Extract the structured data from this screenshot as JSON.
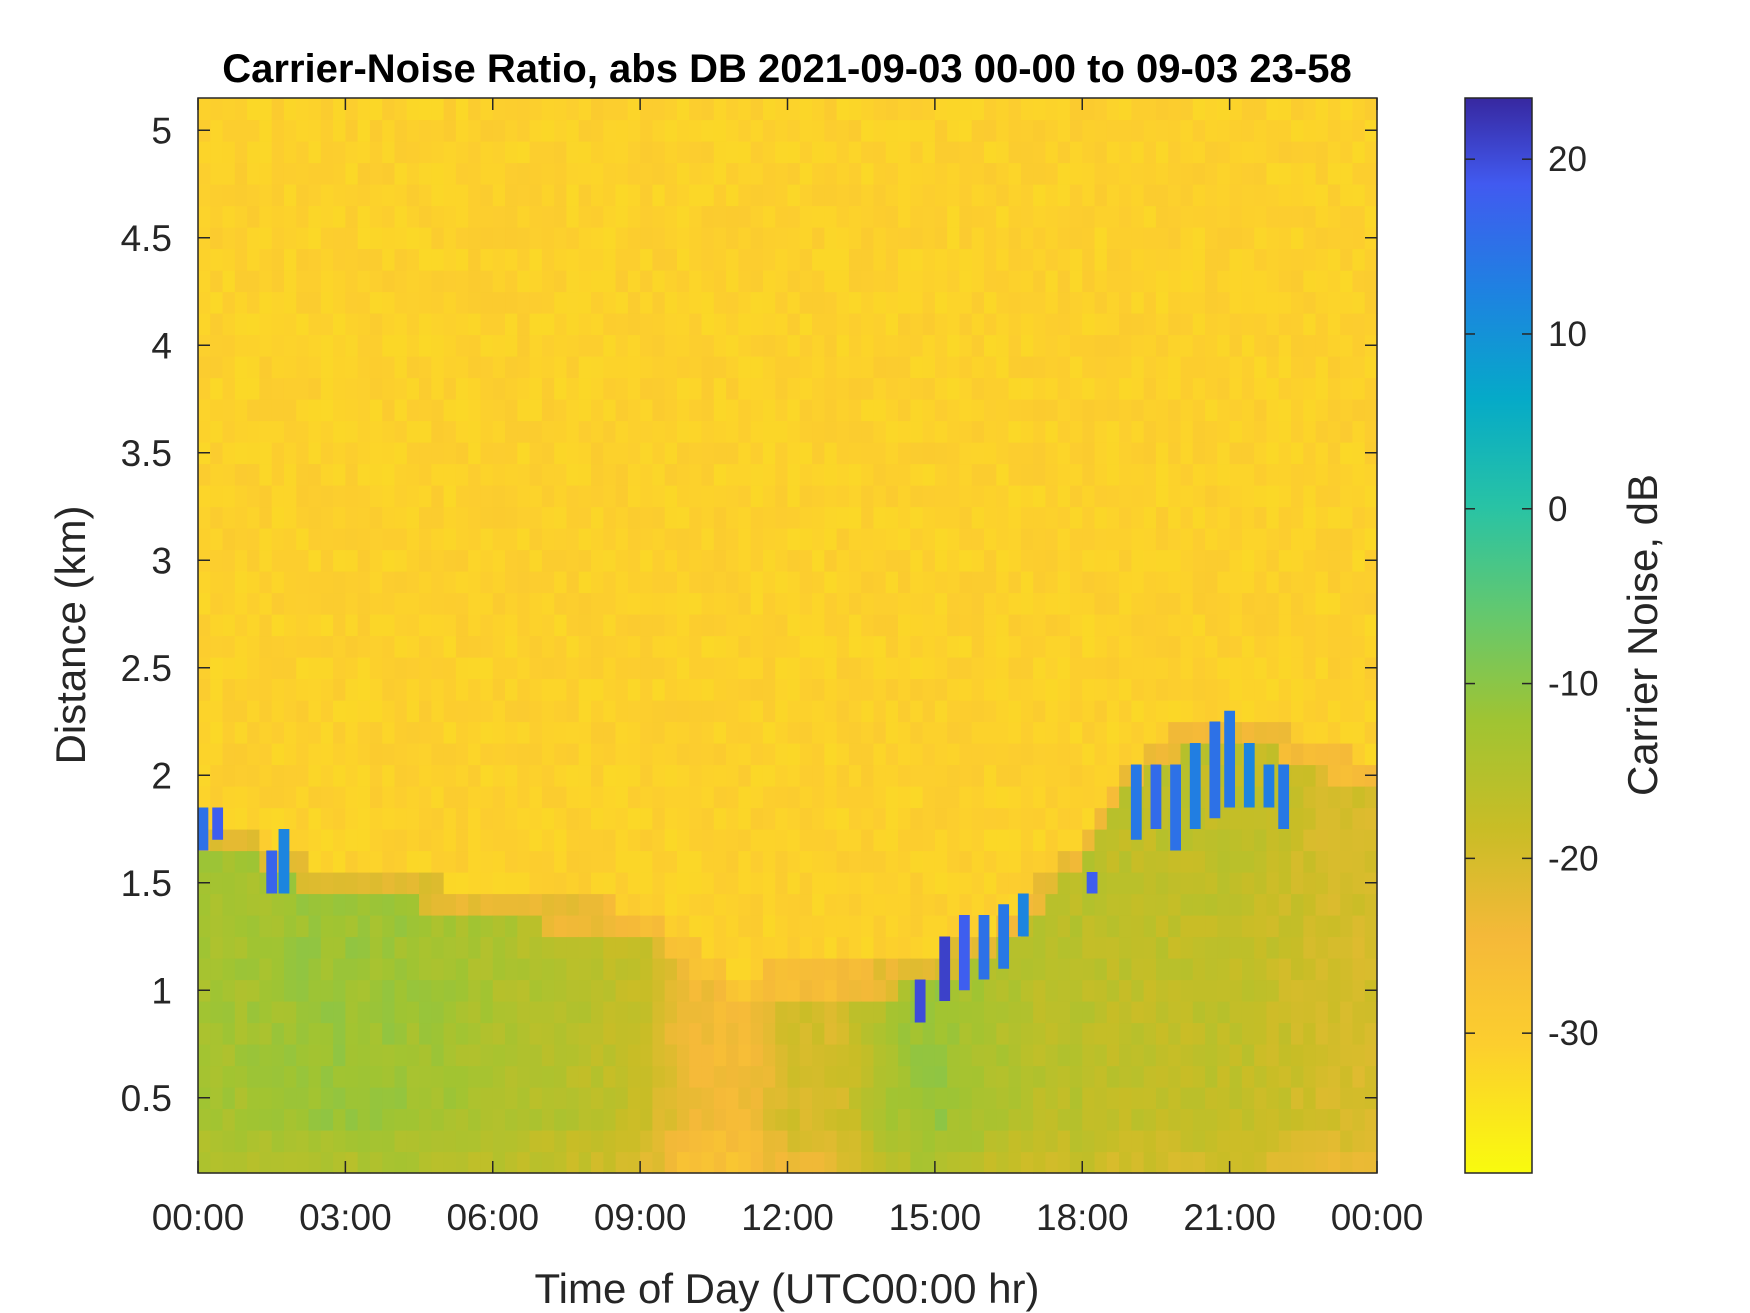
{
  "chart_data": {
    "type": "heatmap",
    "title": "Carrier-Noise Ratio, abs DB 2021-09-03 00-00 to 09-03 23-58",
    "xlabel": "Time of Day (UTC00:00 hr)",
    "ylabel": "Distance (km)",
    "x_unit": "hours since 2021-09-03 00:00 UTC",
    "xlim": [
      0,
      24
    ],
    "ylim": [
      0.15,
      5.15
    ],
    "x_ticks": [
      {
        "value": 0,
        "label": "00:00"
      },
      {
        "value": 3,
        "label": "03:00"
      },
      {
        "value": 6,
        "label": "06:00"
      },
      {
        "value": 9,
        "label": "09:00"
      },
      {
        "value": 12,
        "label": "12:00"
      },
      {
        "value": 15,
        "label": "15:00"
      },
      {
        "value": 18,
        "label": "18:00"
      },
      {
        "value": 21,
        "label": "21:00"
      },
      {
        "value": 24,
        "label": "00:00"
      }
    ],
    "y_ticks": [
      {
        "value": 0.5,
        "label": "0.5"
      },
      {
        "value": 1,
        "label": "1"
      },
      {
        "value": 1.5,
        "label": "1.5"
      },
      {
        "value": 2,
        "label": "2"
      },
      {
        "value": 2.5,
        "label": "2.5"
      },
      {
        "value": 3,
        "label": "3"
      },
      {
        "value": 3.5,
        "label": "3.5"
      },
      {
        "value": 4,
        "label": "4"
      },
      {
        "value": 4.5,
        "label": "4.5"
      },
      {
        "value": 5,
        "label": "5"
      }
    ],
    "colorbar": {
      "label": "Carrier Noise, dB",
      "clim": [
        -38,
        23.5
      ],
      "colormap": "parula-reversed",
      "ticks": [
        {
          "value": 20,
          "label": "20"
        },
        {
          "value": 10,
          "label": "10"
        },
        {
          "value": 0,
          "label": "0"
        },
        {
          "value": -10,
          "label": "-10"
        },
        {
          "value": -20,
          "label": "-20"
        },
        {
          "value": -30,
          "label": "-30"
        }
      ]
    },
    "background_level_db": -31,
    "boundary_layer": [
      {
        "hour": 0,
        "top_km": 1.65,
        "level_db": -13
      },
      {
        "hour": 1,
        "top_km": 1.62,
        "level_db": -13
      },
      {
        "hour": 2,
        "top_km": 1.5,
        "level_db": -12
      },
      {
        "hour": 3,
        "top_km": 1.44,
        "level_db": -12
      },
      {
        "hour": 4,
        "top_km": 1.42,
        "level_db": -12
      },
      {
        "hour": 5,
        "top_km": 1.38,
        "level_db": -13
      },
      {
        "hour": 6,
        "top_km": 1.34,
        "level_db": -14
      },
      {
        "hour": 7,
        "top_km": 1.3,
        "level_db": -15
      },
      {
        "hour": 8,
        "top_km": 1.3,
        "level_db": -16
      },
      {
        "hour": 9,
        "top_km": 1.25,
        "level_db": -18
      },
      {
        "hour": 10,
        "top_km": 1.12,
        "level_db": -24
      },
      {
        "hour": 11,
        "top_km": 0.95,
        "level_db": -25
      },
      {
        "hour": 12,
        "top_km": 1.0,
        "level_db": -20
      },
      {
        "hour": 13,
        "top_km": 1.0,
        "level_db": -20
      },
      {
        "hour": 14,
        "top_km": 0.98,
        "level_db": -14
      },
      {
        "hour": 15,
        "top_km": 1.05,
        "level_db": -11
      },
      {
        "hour": 16,
        "top_km": 1.15,
        "level_db": -14
      },
      {
        "hour": 17,
        "top_km": 1.35,
        "level_db": -16
      },
      {
        "hour": 18,
        "top_km": 1.6,
        "level_db": -16
      },
      {
        "hour": 19,
        "top_km": 1.95,
        "level_db": -17
      },
      {
        "hour": 20,
        "top_km": 2.1,
        "level_db": -17
      },
      {
        "hour": 21,
        "top_km": 2.15,
        "level_db": -17
      },
      {
        "hour": 22,
        "top_km": 2.1,
        "level_db": -18
      },
      {
        "hour": 23,
        "top_km": 2.0,
        "level_db": -20
      },
      {
        "hour": 24,
        "top_km": 1.95,
        "level_db": -20
      }
    ],
    "strong_returns": [
      {
        "hour": 0.1,
        "bottom_km": 1.65,
        "top_km": 1.85,
        "level_db": 15
      },
      {
        "hour": 0.4,
        "bottom_km": 1.7,
        "top_km": 1.85,
        "level_db": 18
      },
      {
        "hour": 1.5,
        "bottom_km": 1.45,
        "top_km": 1.65,
        "level_db": 17
      },
      {
        "hour": 1.75,
        "bottom_km": 1.45,
        "top_km": 1.75,
        "level_db": 12
      },
      {
        "hour": 14.7,
        "bottom_km": 0.85,
        "top_km": 1.05,
        "level_db": 20
      },
      {
        "hour": 15.2,
        "bottom_km": 0.95,
        "top_km": 1.25,
        "level_db": 21
      },
      {
        "hour": 15.6,
        "bottom_km": 1.0,
        "top_km": 1.35,
        "level_db": 18
      },
      {
        "hour": 16.0,
        "bottom_km": 1.05,
        "top_km": 1.35,
        "level_db": 15
      },
      {
        "hour": 16.4,
        "bottom_km": 1.1,
        "top_km": 1.4,
        "level_db": 14
      },
      {
        "hour": 16.8,
        "bottom_km": 1.25,
        "top_km": 1.45,
        "level_db": 12
      },
      {
        "hour": 18.2,
        "bottom_km": 1.45,
        "top_km": 1.55,
        "level_db": 18
      },
      {
        "hour": 19.1,
        "bottom_km": 1.7,
        "top_km": 2.05,
        "level_db": 14
      },
      {
        "hour": 19.5,
        "bottom_km": 1.75,
        "top_km": 2.05,
        "level_db": 16
      },
      {
        "hour": 19.9,
        "bottom_km": 1.65,
        "top_km": 2.05,
        "level_db": 15
      },
      {
        "hour": 20.3,
        "bottom_km": 1.75,
        "top_km": 2.15,
        "level_db": 13
      },
      {
        "hour": 20.7,
        "bottom_km": 1.8,
        "top_km": 2.25,
        "level_db": 15
      },
      {
        "hour": 21.0,
        "bottom_km": 1.85,
        "top_km": 2.3,
        "level_db": 14
      },
      {
        "hour": 21.4,
        "bottom_km": 1.85,
        "top_km": 2.15,
        "level_db": 12
      },
      {
        "hour": 21.8,
        "bottom_km": 1.85,
        "top_km": 2.05,
        "level_db": 13
      },
      {
        "hour": 22.1,
        "bottom_km": 1.75,
        "top_km": 2.05,
        "level_db": 14
      }
    ]
  }
}
